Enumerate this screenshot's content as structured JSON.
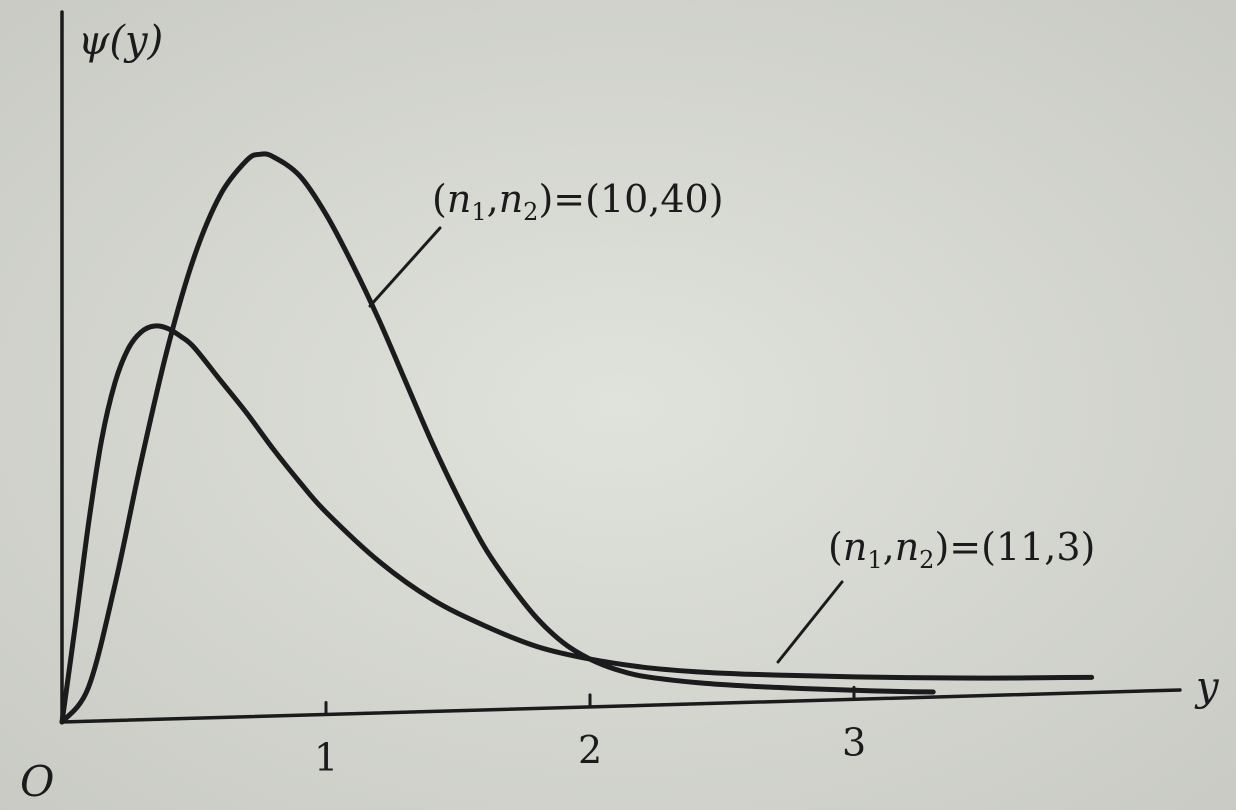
{
  "chart_data": {
    "type": "line",
    "title": "",
    "ylabel": "ψ(y)",
    "xlabel": "y",
    "origin_label": "O",
    "xlim": [
      0,
      4.3
    ],
    "ylim": [
      0,
      1.05
    ],
    "x_ticks": [
      {
        "value": 1,
        "label": "1"
      },
      {
        "value": 2,
        "label": "2"
      },
      {
        "value": 3,
        "label": "3"
      }
    ],
    "grid": false,
    "series": [
      {
        "id": "s-10-40",
        "label": {
          "pre": "(",
          "a": "n",
          "a_sub": "1",
          "sep": ",",
          "b": "n",
          "b_sub": "2",
          "post": ")=(10,40)"
        },
        "x": [
          0,
          0.1,
          0.2,
          0.3,
          0.4,
          0.5,
          0.6,
          0.7,
          0.75,
          0.8,
          0.9,
          1.0,
          1.1,
          1.2,
          1.3,
          1.4,
          1.5,
          1.6,
          1.7,
          1.8,
          1.9,
          2.0,
          2.1,
          2.2,
          2.4,
          2.6,
          2.8,
          3.0,
          3.2,
          3.3
        ],
        "y": [
          0,
          0.06,
          0.24,
          0.46,
          0.66,
          0.82,
          0.93,
          0.99,
          1.0,
          0.995,
          0.96,
          0.89,
          0.8,
          0.7,
          0.59,
          0.48,
          0.38,
          0.29,
          0.22,
          0.16,
          0.115,
          0.085,
          0.065,
          0.052,
          0.038,
          0.029,
          0.022,
          0.016,
          0.011,
          0.009
        ]
      },
      {
        "id": "s-11-3",
        "label": {
          "pre": "(",
          "a": "n",
          "a_sub": "1",
          "sep": ",",
          "b": "n",
          "b_sub": "2",
          "post": ")=(11,3)"
        },
        "x": [
          0,
          0.05,
          0.1,
          0.15,
          0.2,
          0.25,
          0.3,
          0.35,
          0.4,
          0.45,
          0.5,
          0.6,
          0.7,
          0.8,
          0.9,
          1.0,
          1.2,
          1.4,
          1.6,
          1.8,
          2.0,
          2.2,
          2.4,
          2.6,
          2.8,
          3.0,
          3.2,
          3.5,
          3.8,
          3.9
        ],
        "y": [
          0,
          0.17,
          0.35,
          0.5,
          0.6,
          0.66,
          0.69,
          0.7,
          0.695,
          0.68,
          0.66,
          0.6,
          0.54,
          0.475,
          0.415,
          0.36,
          0.27,
          0.2,
          0.15,
          0.11,
          0.085,
          0.068,
          0.057,
          0.05,
          0.045,
          0.04,
          0.036,
          0.031,
          0.028,
          0.027
        ]
      }
    ]
  }
}
